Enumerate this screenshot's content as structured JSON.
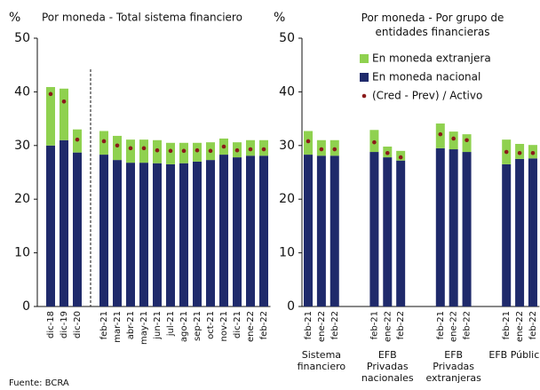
{
  "chart_data": [
    {
      "type": "bar",
      "stacked": true,
      "separator": true,
      "y_label": "%",
      "title": "Por moneda - Total sistema financiero",
      "categories": [
        "dic-18",
        "dic-19",
        "dic-20",
        null,
        "feb-21",
        "mar-21",
        "abr-21",
        "may-21",
        "jun-21",
        "jul-21",
        "ago-21",
        "sep-21",
        "oct-21",
        "nov-21",
        "dic-21",
        "ene-22",
        "feb-22"
      ],
      "series": [
        {
          "name": "En moneda extranjera",
          "color": "#8fd14f",
          "values": [
            10.9,
            9.6,
            4.3,
            null,
            4.4,
            4.5,
            4.3,
            4.3,
            4.3,
            4.0,
            3.8,
            3.5,
            3.3,
            3.0,
            2.8,
            2.9,
            2.9
          ]
        },
        {
          "name": "En moneda nacional",
          "color": "#1f2a6b",
          "values": [
            30.0,
            31.0,
            28.7,
            null,
            28.3,
            27.3,
            26.8,
            26.8,
            26.7,
            26.5,
            26.7,
            27.0,
            27.3,
            28.3,
            27.8,
            28.1,
            28.1
          ]
        },
        {
          "name": "(Cred - Prev) / Activo",
          "color": "#8b1a1a",
          "type": "scatter",
          "values": [
            39.6,
            38.2,
            31.1,
            null,
            30.8,
            30.0,
            29.5,
            29.5,
            29.1,
            29.0,
            29.0,
            29.1,
            29.0,
            29.8,
            29.1,
            29.3,
            29.3
          ]
        }
      ],
      "ylim": [
        0,
        50
      ],
      "yticks": [
        0,
        10,
        20,
        30,
        40,
        50
      ],
      "legend": false
    },
    {
      "type": "bar",
      "stacked": true,
      "separator": false,
      "y_label": "%",
      "title": "Por moneda - Por grupo de entidades financieras",
      "categories": [
        "feb-21",
        "ene-22",
        "feb-22",
        null,
        null,
        "feb-21",
        "ene-22",
        "feb-22",
        null,
        null,
        "feb-21",
        "ene-22",
        "feb-22",
        null,
        null,
        "feb-21",
        "ene-22",
        "feb-22"
      ],
      "groups": [
        "Sistema financiero",
        "EFB Privadas nacionales",
        "EFB Privadas extranjeras",
        "EFB Públicas"
      ],
      "series": [
        {
          "name": "En moneda extranjera",
          "color": "#8fd14f",
          "values": [
            4.4,
            2.9,
            2.9,
            null,
            null,
            4.1,
            2.0,
            1.8,
            null,
            null,
            4.6,
            3.3,
            3.3,
            null,
            null,
            4.6,
            2.8,
            2.5
          ]
        },
        {
          "name": "En moneda nacional",
          "color": "#1f2a6b",
          "values": [
            28.3,
            28.1,
            28.1,
            null,
            null,
            28.8,
            27.8,
            27.2,
            null,
            null,
            29.5,
            29.3,
            28.8,
            null,
            null,
            26.5,
            27.5,
            27.6
          ]
        },
        {
          "name": "(Cred - Prev) / Activo",
          "color": "#8b1a1a",
          "type": "scatter",
          "values": [
            30.8,
            29.3,
            29.3,
            null,
            null,
            30.6,
            28.6,
            27.8,
            null,
            null,
            32.1,
            31.3,
            31.0,
            null,
            null,
            28.8,
            28.6,
            28.6
          ]
        }
      ],
      "ylim": [
        0,
        50
      ],
      "yticks": [
        0,
        10,
        20,
        30,
        40,
        50
      ],
      "legend": true
    }
  ],
  "source": "Fuente: BCRA"
}
